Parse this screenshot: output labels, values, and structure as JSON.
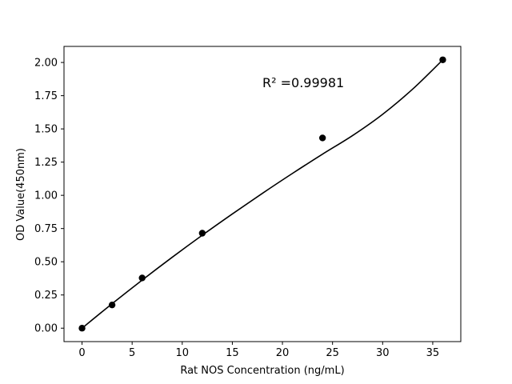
{
  "chart_data": {
    "type": "scatter",
    "xlabel": "Rat NOS Concentration (ng/mL)",
    "ylabel": "OD Value(450nm)",
    "annotation": "R² =0.99981",
    "xlim": [
      -1.8,
      37.8
    ],
    "ylim": [
      -0.101,
      2.121
    ],
    "xticks": [
      0,
      5,
      10,
      15,
      20,
      25,
      30,
      35
    ],
    "yticks": [
      0.0,
      0.25,
      0.5,
      0.75,
      1.0,
      1.25,
      1.5,
      1.75,
      2.0
    ],
    "xtick_labels": [
      "0",
      "5",
      "10",
      "15",
      "20",
      "25",
      "30",
      "35"
    ],
    "ytick_labels": [
      "0.00",
      "0.25",
      "0.50",
      "0.75",
      "1.00",
      "1.25",
      "1.50",
      "1.75",
      "2.00"
    ],
    "grid": false,
    "points": {
      "x": [
        0,
        3,
        6,
        12,
        24,
        36
      ],
      "y": [
        0.0,
        0.175,
        0.378,
        0.715,
        1.432,
        2.02
      ]
    },
    "fit_curve": {
      "x": [
        0,
        3,
        6,
        9,
        12,
        15,
        18,
        21,
        24,
        27,
        30,
        33,
        36
      ],
      "y": [
        0.0,
        0.184,
        0.362,
        0.534,
        0.7,
        0.86,
        1.015,
        1.165,
        1.31,
        1.45,
        1.61,
        1.8,
        2.02
      ]
    },
    "colors": {
      "marker": "#000000",
      "line": "#000000",
      "axes": "#000000"
    }
  }
}
